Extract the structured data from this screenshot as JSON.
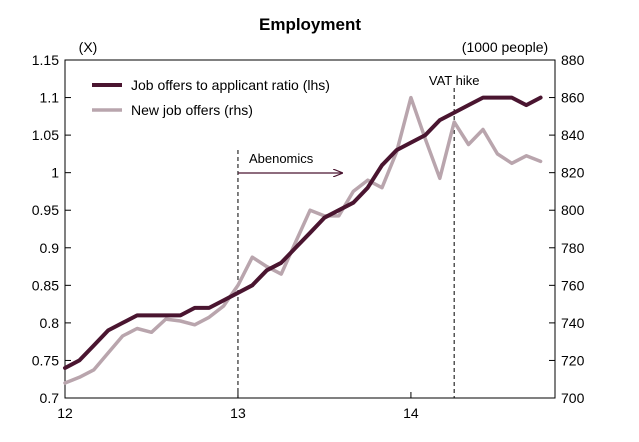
{
  "chart_data": {
    "type": "line",
    "title": "Employment",
    "left_unit": "(X)",
    "right_unit": "(1000 people)",
    "left_axis": {
      "min": 0.7,
      "max": 1.15,
      "ticks": [
        "0.7",
        "0.75",
        "0.8",
        "0.85",
        "0.9",
        "0.95",
        "1",
        "1.05",
        "1.1",
        "1.15"
      ]
    },
    "right_axis": {
      "min": 700,
      "max": 880,
      "ticks": [
        "700",
        "720",
        "740",
        "760",
        "780",
        "800",
        "820",
        "840",
        "860",
        "880"
      ]
    },
    "x_axis": {
      "min": 12,
      "max": 14.833,
      "ticks": [
        {
          "value": 12,
          "label": "12"
        },
        {
          "value": 13,
          "label": "13"
        },
        {
          "value": 14,
          "label": "14"
        }
      ]
    },
    "series": [
      {
        "name": "Job offers to applicant ratio (lhs)",
        "axis": "left",
        "color": "#4a1530",
        "x": [
          12.0,
          12.083,
          12.167,
          12.25,
          12.333,
          12.417,
          12.5,
          12.583,
          12.667,
          12.75,
          12.833,
          12.917,
          13.0,
          13.083,
          13.167,
          13.25,
          13.333,
          13.417,
          13.5,
          13.583,
          13.667,
          13.75,
          13.833,
          13.917,
          14.0,
          14.083,
          14.167,
          14.25,
          14.333,
          14.417,
          14.5,
          14.583,
          14.667,
          14.75
        ],
        "y": [
          0.74,
          0.75,
          0.77,
          0.79,
          0.8,
          0.81,
          0.81,
          0.81,
          0.81,
          0.82,
          0.82,
          0.83,
          0.84,
          0.85,
          0.87,
          0.88,
          0.9,
          0.92,
          0.94,
          0.95,
          0.96,
          0.98,
          1.01,
          1.03,
          1.04,
          1.05,
          1.07,
          1.08,
          1.09,
          1.1,
          1.1,
          1.1,
          1.09,
          1.1
        ]
      },
      {
        "name": "New job offers (rhs)",
        "axis": "right",
        "color": "#b9a5ad",
        "x": [
          12.0,
          12.083,
          12.167,
          12.25,
          12.333,
          12.417,
          12.5,
          12.583,
          12.667,
          12.75,
          12.833,
          12.917,
          13.0,
          13.083,
          13.167,
          13.25,
          13.333,
          13.417,
          13.5,
          13.583,
          13.667,
          13.75,
          13.833,
          13.917,
          14.0,
          14.083,
          14.167,
          14.25,
          14.333,
          14.417,
          14.5,
          14.583,
          14.667,
          14.75
        ],
        "y": [
          708,
          711,
          715,
          724,
          733,
          737,
          735,
          742,
          741,
          739,
          743,
          749,
          760,
          775,
          770,
          766,
          783,
          800,
          797,
          797,
          810,
          816,
          812,
          831,
          860,
          838,
          817,
          847,
          835,
          843,
          830,
          825,
          829,
          826
        ]
      }
    ],
    "annotations": [
      {
        "label": "Abenomics",
        "x": 13.0,
        "arrow": true
      },
      {
        "label": "VAT hike",
        "x": 14.25,
        "arrow": false
      }
    ],
    "grid": false,
    "legend_position": "top-left"
  }
}
